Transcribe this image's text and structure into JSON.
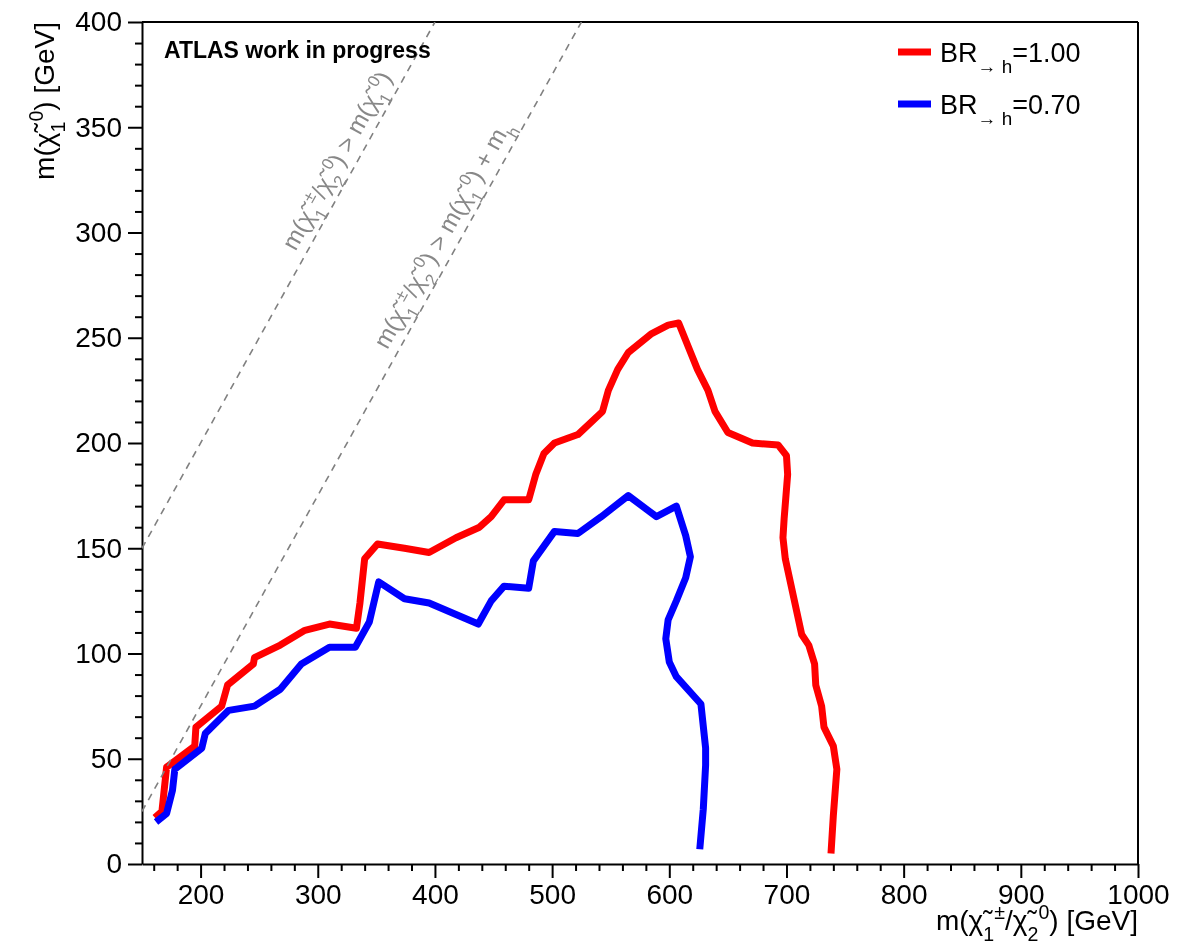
{
  "chart_data": {
    "type": "line",
    "xlabel": "m(χ̃$_{1}$$^{±}$/χ̃$_{2}$$^{0}$) [GeV]",
    "ylabel": "m(χ̃$_{1}$$^{0}$) [GeV]",
    "xlim": [
      150,
      1000
    ],
    "ylim": [
      0,
      400
    ],
    "xticks": [
      {
        "value": 160,
        "label": null
      },
      {
        "value": 180,
        "label": null
      },
      200,
      {
        "value": 220,
        "label": null
      },
      {
        "value": 240,
        "label": null
      },
      {
        "value": 260,
        "label": null
      },
      {
        "value": 280,
        "label": null
      },
      300,
      {
        "value": 320,
        "label": null
      },
      {
        "value": 340,
        "label": null
      },
      {
        "value": 360,
        "label": null
      },
      {
        "value": 380,
        "label": null
      },
      400,
      {
        "value": 420,
        "label": null
      },
      {
        "value": 440,
        "label": null
      },
      {
        "value": 460,
        "label": null
      },
      {
        "value": 480,
        "label": null
      },
      500,
      {
        "value": 520,
        "label": null
      },
      {
        "value": 540,
        "label": null
      },
      {
        "value": 560,
        "label": null
      },
      {
        "value": 580,
        "label": null
      },
      600,
      {
        "value": 620,
        "label": null
      },
      {
        "value": 640,
        "label": null
      },
      {
        "value": 660,
        "label": null
      },
      {
        "value": 680,
        "label": null
      },
      700,
      {
        "value": 720,
        "label": null
      },
      {
        "value": 740,
        "label": null
      },
      {
        "value": 760,
        "label": null
      },
      {
        "value": 780,
        "label": null
      },
      800,
      {
        "value": 820,
        "label": null
      },
      {
        "value": 840,
        "label": null
      },
      {
        "value": 860,
        "label": null
      },
      {
        "value": 880,
        "label": null
      },
      900,
      {
        "value": 920,
        "label": null
      },
      {
        "value": 940,
        "label": null
      },
      {
        "value": 960,
        "label": null
      },
      {
        "value": 980,
        "label": null
      },
      1000
    ],
    "yticks": [
      0,
      {
        "value": 10,
        "label": null
      },
      {
        "value": 20,
        "label": null
      },
      {
        "value": 30,
        "label": null
      },
      {
        "value": 40,
        "label": null
      },
      50,
      {
        "value": 60,
        "label": null
      },
      {
        "value": 70,
        "label": null
      },
      {
        "value": 80,
        "label": null
      },
      {
        "value": 90,
        "label": null
      },
      100,
      {
        "value": 110,
        "label": null
      },
      {
        "value": 120,
        "label": null
      },
      {
        "value": 130,
        "label": null
      },
      {
        "value": 140,
        "label": null
      },
      150,
      {
        "value": 160,
        "label": null
      },
      {
        "value": 170,
        "label": null
      },
      {
        "value": 180,
        "label": null
      },
      {
        "value": 190,
        "label": null
      },
      200,
      {
        "value": 210,
        "label": null
      },
      {
        "value": 220,
        "label": null
      },
      {
        "value": 230,
        "label": null
      },
      {
        "value": 240,
        "label": null
      },
      250,
      {
        "value": 260,
        "label": null
      },
      {
        "value": 270,
        "label": null
      },
      {
        "value": 280,
        "label": null
      },
      {
        "value": 290,
        "label": null
      },
      300,
      {
        "value": 310,
        "label": null
      },
      {
        "value": 320,
        "label": null
      },
      {
        "value": 330,
        "label": null
      },
      {
        "value": 340,
        "label": null
      },
      350,
      {
        "value": 360,
        "label": null
      },
      {
        "value": 370,
        "label": null
      },
      {
        "value": 380,
        "label": null
      },
      {
        "value": 390,
        "label": null
      },
      400
    ],
    "grid": false,
    "legend": "top right",
    "line_style": "solid",
    "series": [
      {
        "name": "BR$_{→ h}$=1.00",
        "color": "#ff0000",
        "x": [
          161,
          167,
          171,
          195,
          196,
          218,
          223,
          245,
          246,
          268,
          289,
          310,
          333,
          336,
          340,
          351,
          374,
          395,
          418,
          438,
          448,
          459,
          480,
          486,
          493,
          502,
          522,
          543,
          548,
          556,
          565,
          585,
          599,
          608,
          624,
          633,
          639,
          650,
          671,
          693,
          700,
          701,
          698,
          697,
          699,
          713,
          719,
          724,
          725,
          730,
          732,
          740,
          743,
          740,
          738
        ],
        "values": [
          22,
          25,
          46,
          56,
          65,
          75,
          85,
          95,
          98,
          104,
          111,
          114,
          112,
          124,
          145,
          152,
          150,
          148,
          155,
          160,
          165,
          173,
          173,
          185,
          195,
          200,
          204,
          215,
          225,
          235,
          243,
          252,
          256,
          257,
          235,
          225,
          215,
          205,
          200,
          199,
          194,
          185,
          164,
          155,
          145,
          109,
          104,
          95,
          85,
          75,
          65,
          56,
          45,
          23,
          5
        ]
      },
      {
        "name": "BR$_{→ h}$=0.70",
        "color": "#0000ff",
        "x": [
          162,
          171,
          176,
          178,
          201,
          204,
          224,
          246,
          268,
          286,
          310,
          332,
          344,
          352,
          374,
          395,
          437,
          448,
          459,
          480,
          484,
          502,
          522,
          542,
          565,
          589,
          606,
          614,
          618,
          614,
          606,
          599,
          597,
          600,
          606,
          627,
          631,
          631,
          629,
          626
        ],
        "values": [
          20,
          24,
          35,
          45,
          55,
          62,
          73,
          75,
          83,
          95,
          103,
          103,
          115,
          134,
          126,
          124,
          114,
          125,
          132,
          131,
          144,
          158,
          157,
          165,
          175,
          165,
          170,
          156,
          146,
          136,
          125,
          116,
          107,
          96,
          89,
          76,
          55,
          47,
          26,
          7
        ]
      },
      {
        "color": "#808080",
        "line_style": "dashed",
        "x": [
          150,
          400
        ],
        "values": [
          150,
          400
        ]
      },
      {
        "color": "#808080",
        "line_style": "dashed",
        "x": [
          150,
          525
        ],
        "values": [
          25,
          400
        ]
      }
    ],
    "annotations": [
      "ATLAS work in progress",
      "m(χ̃$_{1}$$^{±}$/χ̃$_{2}$$^{0}$) > m(χ̃$_{1}$$^{0}$)",
      "m(χ̃$_{1}$$^{±}$/χ̃$_{2}$$^{0}$) > m(χ̃$_{1}$$^{0}$) + m$_{h}$"
    ]
  }
}
